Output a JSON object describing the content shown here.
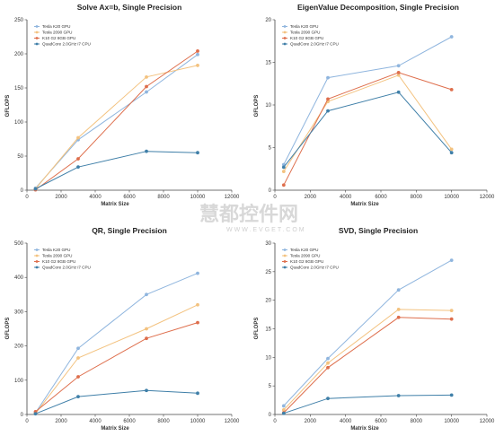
{
  "watermark": {
    "text_cn": "慧都控件网",
    "url": "WWW.EVGET.COM"
  },
  "colors": {
    "Tesla K20 GPU": "#8fb5de",
    "Tesla 2090 GPU": "#f3c27f",
    "K10 G2 8GB GPU": "#de6e4c",
    "QuadCore 2.0GHz i7 CPU": "#3f7fa8"
  },
  "chart_data": [
    {
      "type": "line",
      "title": "Solve Ax=b, Single Precision",
      "xlabel": "Matrix Size",
      "ylabel": "GFLOPS",
      "xlim": [
        0,
        12000
      ],
      "ylim": [
        0,
        250
      ],
      "xticks": [
        0,
        2000,
        4000,
        6000,
        8000,
        10000,
        12000
      ],
      "yticks": [
        0,
        50,
        100,
        150,
        200,
        250
      ],
      "legend_position": "top-left",
      "series": [
        {
          "name": "Tesla K20 GPU",
          "x": [
            500,
            3000,
            7000,
            10000
          ],
          "y": [
            3,
            74,
            144,
            199
          ]
        },
        {
          "name": "Tesla 2090 GPU",
          "x": [
            500,
            3000,
            7000,
            10000
          ],
          "y": [
            2,
            77,
            166,
            183
          ]
        },
        {
          "name": "K10 G2 8GB GPU",
          "x": [
            500,
            3000,
            7000,
            10000
          ],
          "y": [
            0.5,
            46,
            152,
            204
          ]
        },
        {
          "name": "QuadCore 2.0GHz i7 CPU",
          "x": [
            500,
            3000,
            7000,
            10000
          ],
          "y": [
            2,
            34,
            57,
            55
          ]
        }
      ]
    },
    {
      "type": "line",
      "title": "EigenValue Decomposition, Single Precision",
      "xlabel": "Matrix Size",
      "ylabel": "GFLOPS",
      "xlim": [
        0,
        12000
      ],
      "ylim": [
        0,
        20
      ],
      "xticks": [
        0,
        2000,
        4000,
        6000,
        8000,
        10000,
        12000
      ],
      "yticks": [
        0,
        5,
        10,
        15,
        20
      ],
      "legend_position": "top-left",
      "series": [
        {
          "name": "Tesla K20 GPU",
          "x": [
            500,
            3000,
            7000,
            10000
          ],
          "y": [
            3.0,
            13.2,
            14.6,
            18.0
          ]
        },
        {
          "name": "Tesla 2090 GPU",
          "x": [
            500,
            3000,
            7000,
            10000
          ],
          "y": [
            2.2,
            10.4,
            13.5,
            4.8
          ]
        },
        {
          "name": "K10 G2 8GB GPU",
          "x": [
            500,
            3000,
            7000,
            10000
          ],
          "y": [
            0.6,
            10.7,
            13.8,
            11.8
          ]
        },
        {
          "name": "QuadCore 2.0GHz i7 CPU",
          "x": [
            500,
            3000,
            7000,
            10000
          ],
          "y": [
            2.7,
            9.3,
            11.5,
            4.4
          ]
        }
      ]
    },
    {
      "type": "line",
      "title": "QR, Single Precision",
      "xlabel": "Matrix Size",
      "ylabel": "GFLOPS",
      "xlim": [
        0,
        12000
      ],
      "ylim": [
        0,
        500
      ],
      "xticks": [
        0,
        2000,
        4000,
        6000,
        8000,
        10000,
        12000
      ],
      "yticks": [
        0,
        100,
        200,
        300,
        400,
        500
      ],
      "legend_position": "top-left",
      "series": [
        {
          "name": "Tesla K20 GPU",
          "x": [
            500,
            3000,
            7000,
            10000
          ],
          "y": [
            5,
            193,
            350,
            412
          ]
        },
        {
          "name": "Tesla 2090 GPU",
          "x": [
            500,
            3000,
            7000,
            10000
          ],
          "y": [
            3,
            165,
            250,
            320
          ]
        },
        {
          "name": "K10 G2 8GB GPU",
          "x": [
            500,
            3000,
            7000,
            10000
          ],
          "y": [
            8,
            110,
            222,
            268
          ]
        },
        {
          "name": "QuadCore 2.0GHz i7 CPU",
          "x": [
            500,
            3000,
            7000,
            10000
          ],
          "y": [
            2,
            52,
            70,
            62
          ]
        }
      ]
    },
    {
      "type": "line",
      "title": "SVD, Single Precision",
      "xlabel": "Matrix Size",
      "ylabel": "GFLOPS",
      "xlim": [
        0,
        12000
      ],
      "ylim": [
        0,
        30
      ],
      "xticks": [
        0,
        2000,
        4000,
        6000,
        8000,
        10000,
        12000
      ],
      "yticks": [
        0,
        5,
        10,
        15,
        20,
        25,
        30
      ],
      "legend_position": "top-left",
      "series": [
        {
          "name": "Tesla K20 GPU",
          "x": [
            500,
            3000,
            7000,
            10000
          ],
          "y": [
            1.5,
            9.8,
            21.8,
            27.0
          ]
        },
        {
          "name": "Tesla 2090 GPU",
          "x": [
            500,
            3000,
            7000,
            10000
          ],
          "y": [
            0.8,
            9.0,
            18.4,
            18.2
          ]
        },
        {
          "name": "K10 G2 8GB GPU",
          "x": [
            500,
            3000,
            7000,
            10000
          ],
          "y": [
            0.3,
            8.2,
            17.0,
            16.7
          ]
        },
        {
          "name": "QuadCore 2.0GHz i7 CPU",
          "x": [
            500,
            3000,
            7000,
            10000
          ],
          "y": [
            0.2,
            2.8,
            3.3,
            3.4
          ]
        }
      ]
    }
  ]
}
